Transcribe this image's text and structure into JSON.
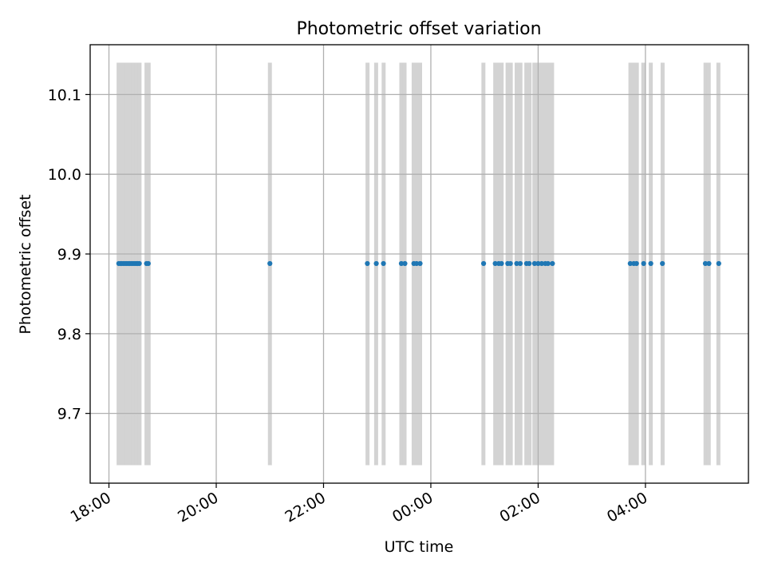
{
  "chart_data": {
    "type": "scatter",
    "title": "Photometric offset variation",
    "xlabel": "UTC time",
    "ylabel": "Photometric offset",
    "x_tick_labels": [
      "18:00",
      "20:00",
      "22:00",
      "00:00",
      "02:00",
      "04:00"
    ],
    "x_tick_hours": [
      18,
      20,
      22,
      24,
      26,
      28
    ],
    "y_tick_labels": [
      "9.7",
      "9.8",
      "9.9",
      "10.0",
      "10.1"
    ],
    "y_ticks": [
      9.7,
      9.8,
      9.9,
      10.0,
      10.1
    ],
    "xlim_hours": [
      17.65,
      29.92
    ],
    "ylim": [
      9.6125,
      10.1625
    ],
    "grid": true,
    "colors": {
      "points": "#1f77b4",
      "bands": "#d3d3d3",
      "grid": "#b0b0b0"
    },
    "marker_value": 9.888,
    "band_value_range": [
      9.635,
      10.14
    ],
    "band_hours": [
      18.18,
      18.21,
      18.24,
      18.27,
      18.3,
      18.33,
      18.36,
      18.39,
      18.42,
      18.45,
      18.48,
      18.51,
      18.54,
      18.57,
      18.7,
      18.74,
      21.0,
      22.82,
      22.98,
      23.12,
      23.45,
      23.51,
      23.68,
      23.74,
      23.8,
      24.98,
      25.2,
      25.26,
      25.32,
      25.43,
      25.49,
      25.6,
      25.67,
      25.78,
      25.84,
      25.93,
      26.0,
      26.07,
      26.13,
      26.19,
      26.26,
      27.72,
      27.78,
      27.84,
      27.96,
      28.1,
      28.32,
      29.12,
      29.18,
      29.36
    ],
    "points": [
      {
        "x": "18:11",
        "y": 9.888
      },
      {
        "x": "18:13",
        "y": 9.888
      },
      {
        "x": "18:14",
        "y": 9.888
      },
      {
        "x": "18:16",
        "y": 9.888
      },
      {
        "x": "18:18",
        "y": 9.888
      },
      {
        "x": "18:20",
        "y": 9.888
      },
      {
        "x": "18:22",
        "y": 9.888
      },
      {
        "x": "18:23",
        "y": 9.888
      },
      {
        "x": "18:25",
        "y": 9.888
      },
      {
        "x": "18:27",
        "y": 9.888
      },
      {
        "x": "18:29",
        "y": 9.888
      },
      {
        "x": "18:31",
        "y": 9.888
      },
      {
        "x": "18:32",
        "y": 9.888
      },
      {
        "x": "18:34",
        "y": 9.888
      },
      {
        "x": "18:42",
        "y": 9.888
      },
      {
        "x": "18:44",
        "y": 9.888
      },
      {
        "x": "21:00",
        "y": 9.888
      },
      {
        "x": "22:49",
        "y": 9.888
      },
      {
        "x": "22:59",
        "y": 9.888
      },
      {
        "x": "23:07",
        "y": 9.888
      },
      {
        "x": "23:27",
        "y": 9.888
      },
      {
        "x": "23:31",
        "y": 9.888
      },
      {
        "x": "23:41",
        "y": 9.888
      },
      {
        "x": "23:44",
        "y": 9.888
      },
      {
        "x": "23:48",
        "y": 9.888
      },
      {
        "x": "00:59",
        "y": 9.888
      },
      {
        "x": "01:12",
        "y": 9.888
      },
      {
        "x": "01:16",
        "y": 9.888
      },
      {
        "x": "01:19",
        "y": 9.888
      },
      {
        "x": "01:26",
        "y": 9.888
      },
      {
        "x": "01:29",
        "y": 9.888
      },
      {
        "x": "01:36",
        "y": 9.888
      },
      {
        "x": "01:40",
        "y": 9.888
      },
      {
        "x": "01:47",
        "y": 9.888
      },
      {
        "x": "01:50",
        "y": 9.888
      },
      {
        "x": "01:56",
        "y": 9.888
      },
      {
        "x": "02:00",
        "y": 9.888
      },
      {
        "x": "02:04",
        "y": 9.888
      },
      {
        "x": "02:08",
        "y": 9.888
      },
      {
        "x": "02:11",
        "y": 9.888
      },
      {
        "x": "02:16",
        "y": 9.888
      },
      {
        "x": "03:43",
        "y": 9.888
      },
      {
        "x": "03:47",
        "y": 9.888
      },
      {
        "x": "03:50",
        "y": 9.888
      },
      {
        "x": "03:58",
        "y": 9.888
      },
      {
        "x": "04:06",
        "y": 9.888
      },
      {
        "x": "04:19",
        "y": 9.888
      },
      {
        "x": "05:07",
        "y": 9.888
      },
      {
        "x": "05:11",
        "y": 9.888
      },
      {
        "x": "05:22",
        "y": 9.888
      }
    ]
  }
}
